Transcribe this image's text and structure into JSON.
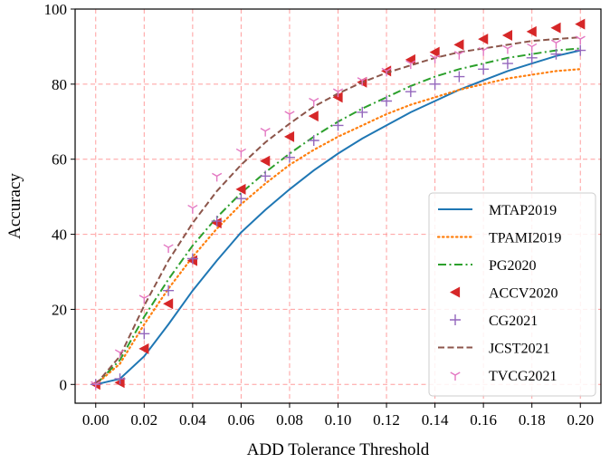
{
  "chart_data": {
    "type": "line",
    "title": "",
    "xlabel": "ADD Tolerance Threshold",
    "ylabel": "Accuracy",
    "xlim": [
      -0.0085,
      0.2085
    ],
    "ylim": [
      -5,
      100
    ],
    "grid": true,
    "legend_position": "lower-right",
    "x_ticks": [
      "0.00",
      "0.02",
      "0.04",
      "0.06",
      "0.08",
      "0.10",
      "0.12",
      "0.14",
      "0.16",
      "0.18",
      "0.20"
    ],
    "y_ticks": [
      "0",
      "20",
      "40",
      "60",
      "80",
      "100"
    ],
    "x": [
      0.0,
      0.01,
      0.02,
      0.03,
      0.04,
      0.05,
      0.06,
      0.07,
      0.08,
      0.09,
      0.1,
      0.11,
      0.12,
      0.13,
      0.14,
      0.15,
      0.16,
      0.17,
      0.18,
      0.19,
      0.2
    ],
    "series": [
      {
        "name": "MTAP2019",
        "style": "solid",
        "color": "#1f77b4",
        "values": [
          0,
          1.5,
          7.5,
          16,
          25,
          33,
          40.5,
          46.5,
          52,
          57,
          61.5,
          65.5,
          69,
          72.5,
          75.5,
          78.5,
          81,
          83.5,
          85.5,
          87.5,
          89
        ]
      },
      {
        "name": "TPAMI2019",
        "style": "dotted",
        "color": "#ff7f0e",
        "values": [
          0,
          5.5,
          16,
          25.5,
          34,
          41.5,
          48,
          53.5,
          58.5,
          62.5,
          66,
          69,
          72,
          74.5,
          76.5,
          78.5,
          80,
          81.5,
          82.5,
          83.5,
          84
        ]
      },
      {
        "name": "PG2020",
        "style": "dashdot",
        "color": "#2ca02c",
        "values": [
          0,
          6.5,
          18,
          28,
          37,
          44.5,
          51,
          56.5,
          61.5,
          66,
          70,
          73.5,
          76.5,
          79.5,
          82,
          84,
          85.5,
          87,
          88,
          89,
          89.5
        ]
      },
      {
        "name": "ACCV2020",
        "style": "marker-triangle-left",
        "color": "#d62728",
        "values": [
          0,
          0.5,
          9.5,
          21.5,
          33,
          43,
          52,
          59.5,
          66,
          71.5,
          76.5,
          80.5,
          83.5,
          86.5,
          88.5,
          90.5,
          92,
          93,
          94,
          95,
          96
        ]
      },
      {
        "name": "CG2021",
        "style": "marker-plus",
        "color": "#9467bd",
        "values": [
          0,
          1.5,
          13.5,
          25,
          33.5,
          43.5,
          49.5,
          55.5,
          60.5,
          65,
          69,
          72.5,
          75.5,
          78,
          80,
          82,
          84,
          85.5,
          87,
          88,
          89
        ]
      },
      {
        "name": "JCST2021",
        "style": "dashed",
        "color": "#8c564b",
        "values": [
          0,
          7.5,
          21,
          33,
          43,
          51.5,
          58.5,
          64.5,
          69.5,
          74,
          77.5,
          80.5,
          83,
          85,
          87,
          88.5,
          89.5,
          90.5,
          91.5,
          92,
          92.5
        ]
      },
      {
        "name": "TVCG2021",
        "style": "marker-tri-down",
        "color": "#e377c2",
        "values": [
          0,
          8.5,
          23,
          36.5,
          47,
          55.5,
          62,
          67.5,
          72,
          75.5,
          78,
          81,
          83.5,
          85.5,
          87,
          88,
          89,
          89.5,
          90,
          91,
          92
        ]
      }
    ]
  }
}
